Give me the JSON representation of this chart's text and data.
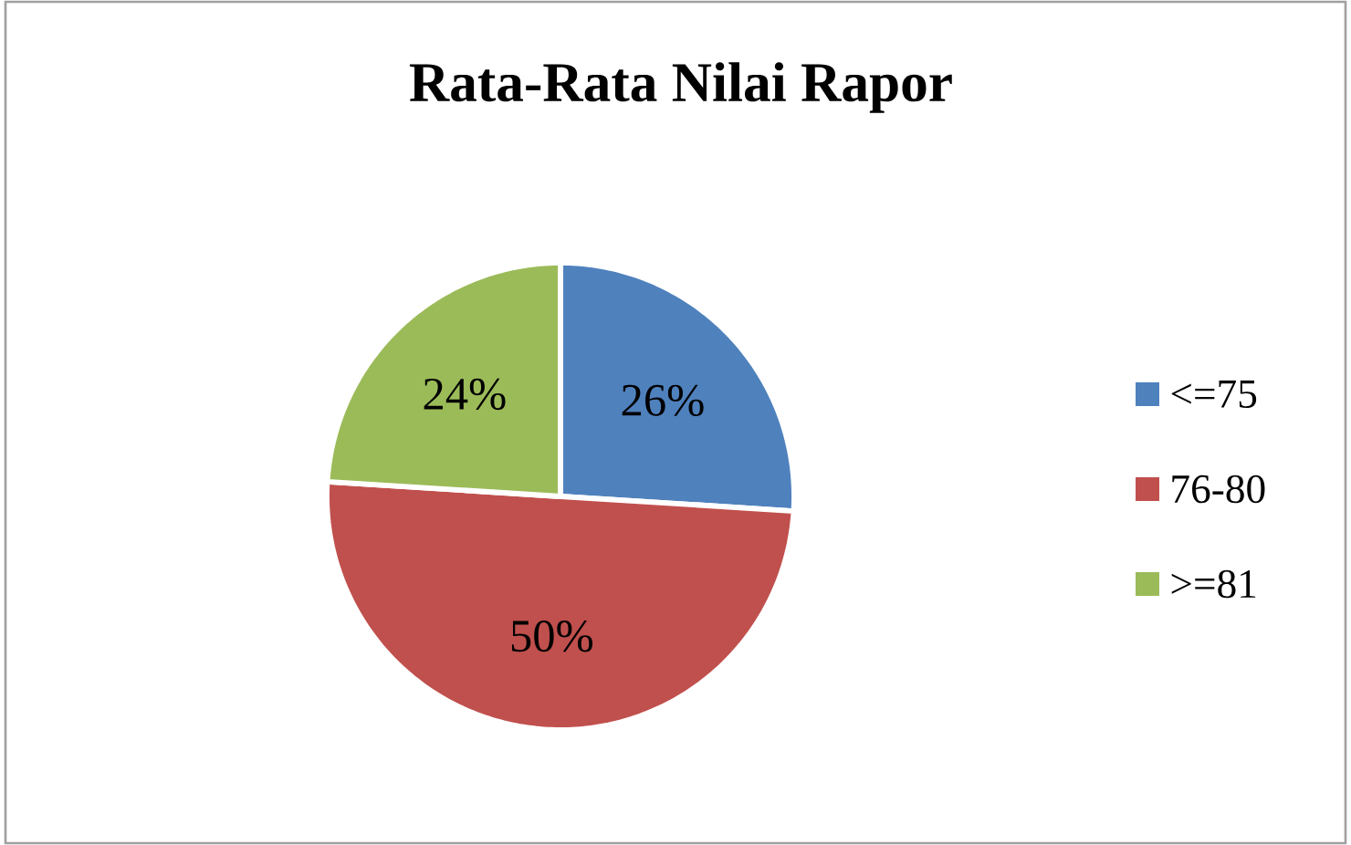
{
  "chart_data": {
    "type": "pie",
    "title": "Rata-Rata Nilai Rapor",
    "categories": [
      "<=75",
      "76-80",
      ">=81"
    ],
    "values": [
      26,
      50,
      24
    ],
    "colors": [
      "#4f81bd",
      "#c0504d",
      "#9bbb59"
    ],
    "value_labels": [
      "26%",
      "50%",
      "24%"
    ],
    "legend": "right"
  }
}
